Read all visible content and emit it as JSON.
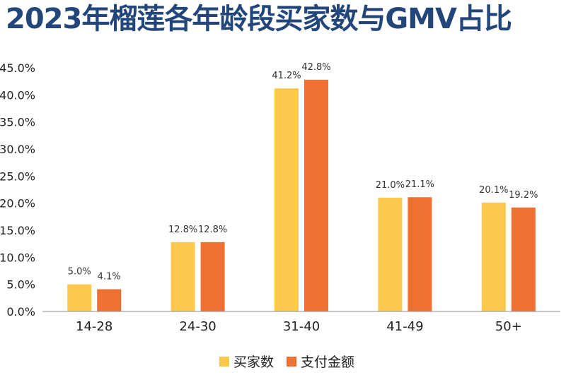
{
  "chart_data": {
    "type": "bar",
    "title": "2023年榴莲各年龄段买家数与GMV占比",
    "categories": [
      "14-28",
      "24-30",
      "31-40",
      "41-49",
      "50+"
    ],
    "series": [
      {
        "name": "买家数",
        "values": [
          5.0,
          12.8,
          41.2,
          21.0,
          20.1
        ],
        "labels": [
          "5.0%",
          "12.8%",
          "41.2%",
          "21.0%",
          "20.1%"
        ],
        "color": "#fec84d"
      },
      {
        "name": "支付金额",
        "values": [
          4.1,
          12.8,
          42.8,
          21.1,
          19.2
        ],
        "labels": [
          "4.1%",
          "12.8%",
          "42.8%",
          "21.1%",
          "19.2%"
        ],
        "color": "#ee7131"
      }
    ],
    "ylim": [
      0,
      45
    ],
    "yticks": [
      0,
      5,
      10,
      15,
      20,
      25,
      30,
      35,
      40,
      45
    ],
    "ytick_labels": [
      "0.0%",
      "5.0%",
      "10.0%",
      "15.0%",
      "20.0%",
      "25.0%",
      "30.0%",
      "35.0%",
      "40.0%",
      "45.0%"
    ],
    "xlabel": "",
    "ylabel": "",
    "grid": false,
    "legend_position": "bottom-center"
  }
}
